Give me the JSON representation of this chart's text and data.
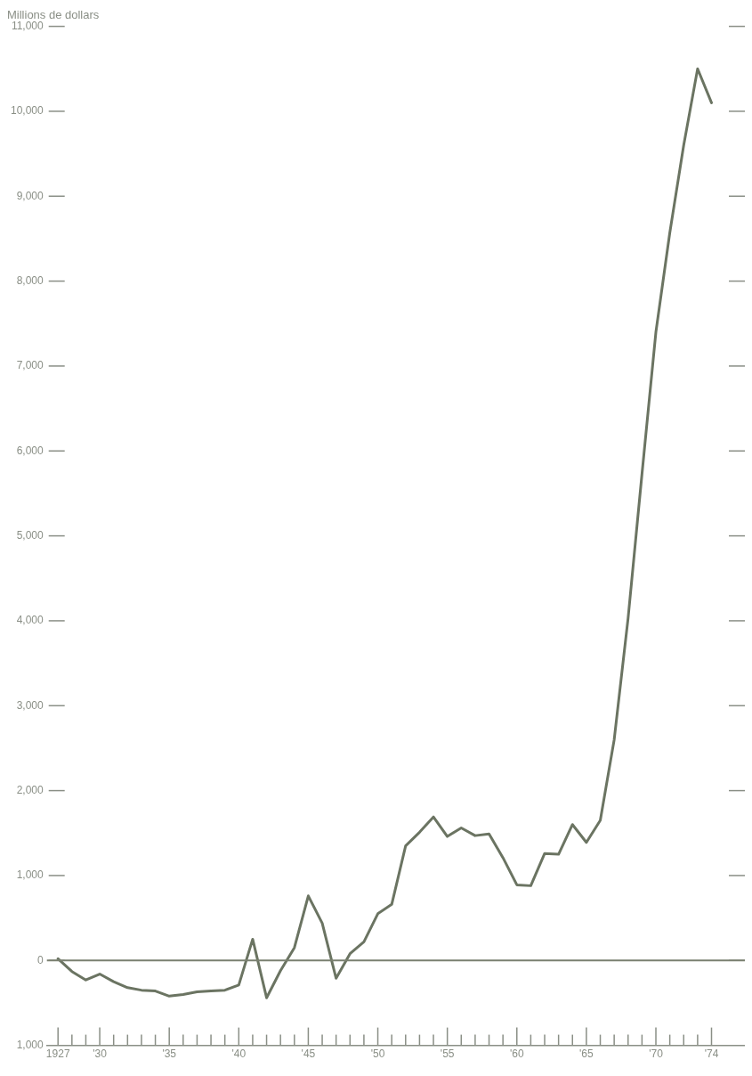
{
  "chart_data": {
    "type": "line",
    "title": "Millions de dollars",
    "x": [
      1927,
      1928,
      1929,
      1930,
      1931,
      1932,
      1933,
      1934,
      1935,
      1936,
      1937,
      1938,
      1939,
      1940,
      1941,
      1942,
      1943,
      1944,
      1945,
      1946,
      1947,
      1948,
      1949,
      1950,
      1951,
      1952,
      1953,
      1954,
      1955,
      1956,
      1957,
      1958,
      1959,
      1960,
      1961,
      1962,
      1963,
      1964,
      1965,
      1966,
      1967,
      1968,
      1969,
      1970,
      1971,
      1972,
      1973,
      1974
    ],
    "series": [
      {
        "color": "#6b7462",
        "values": [
          20,
          -130,
          -230,
          -160,
          -250,
          -320,
          -350,
          -360,
          -420,
          -400,
          -370,
          -360,
          -350,
          -290,
          250,
          -440,
          -120,
          150,
          760,
          440,
          -210,
          80,
          220,
          550,
          660,
          1350,
          1510,
          1690,
          1460,
          1560,
          1470,
          1490,
          1210,
          890,
          880,
          1260,
          1250,
          1600,
          1390,
          1650,
          2600,
          4030,
          5730,
          7400,
          8570,
          9600,
          10500,
          10100
        ]
      }
    ],
    "xlim": [
      1926.2,
      1976.4
    ],
    "ylim": [
      -1000,
      11000
    ],
    "xticks": [
      {
        "value": 1927,
        "label": "1927"
      },
      {
        "value": 1928,
        "label": null
      },
      {
        "value": 1929,
        "label": null
      },
      {
        "value": 1930,
        "label": "'30"
      },
      {
        "value": 1931,
        "label": null
      },
      {
        "value": 1932,
        "label": null
      },
      {
        "value": 1933,
        "label": null
      },
      {
        "value": 1934,
        "label": null
      },
      {
        "value": 1935,
        "label": "'35"
      },
      {
        "value": 1936,
        "label": null
      },
      {
        "value": 1937,
        "label": null
      },
      {
        "value": 1938,
        "label": null
      },
      {
        "value": 1939,
        "label": null
      },
      {
        "value": 1940,
        "label": "'40"
      },
      {
        "value": 1941,
        "label": null
      },
      {
        "value": 1942,
        "label": null
      },
      {
        "value": 1943,
        "label": null
      },
      {
        "value": 1944,
        "label": null
      },
      {
        "value": 1945,
        "label": "'45"
      },
      {
        "value": 1946,
        "label": null
      },
      {
        "value": 1947,
        "label": null
      },
      {
        "value": 1948,
        "label": null
      },
      {
        "value": 1949,
        "label": null
      },
      {
        "value": 1950,
        "label": "'50"
      },
      {
        "value": 1951,
        "label": null
      },
      {
        "value": 1952,
        "label": null
      },
      {
        "value": 1953,
        "label": null
      },
      {
        "value": 1954,
        "label": null
      },
      {
        "value": 1955,
        "label": "'55"
      },
      {
        "value": 1956,
        "label": null
      },
      {
        "value": 1957,
        "label": null
      },
      {
        "value": 1958,
        "label": null
      },
      {
        "value": 1959,
        "label": null
      },
      {
        "value": 1960,
        "label": "'60"
      },
      {
        "value": 1961,
        "label": null
      },
      {
        "value": 1962,
        "label": null
      },
      {
        "value": 1963,
        "label": null
      },
      {
        "value": 1964,
        "label": null
      },
      {
        "value": 1965,
        "label": "'65"
      },
      {
        "value": 1966,
        "label": null
      },
      {
        "value": 1967,
        "label": null
      },
      {
        "value": 1968,
        "label": null
      },
      {
        "value": 1969,
        "label": null
      },
      {
        "value": 1970,
        "label": "'70"
      },
      {
        "value": 1971,
        "label": null
      },
      {
        "value": 1972,
        "label": null
      },
      {
        "value": 1973,
        "label": null
      },
      {
        "value": 1974,
        "label": "'74"
      }
    ],
    "yticks": [
      {
        "value": -1000,
        "label": "1,000"
      },
      0,
      {
        "value": 1000,
        "label": "1,000"
      },
      {
        "value": 2000,
        "label": "2,000"
      },
      {
        "value": 3000,
        "label": "3,000"
      },
      {
        "value": 4000,
        "label": "4,000"
      },
      {
        "value": 5000,
        "label": "5,000"
      },
      {
        "value": 6000,
        "label": "6,000"
      },
      {
        "value": 7000,
        "label": "7,000"
      },
      {
        "value": 8000,
        "label": "8,000"
      },
      {
        "value": 9000,
        "label": "9,000"
      },
      {
        "value": 10000,
        "label": "10,000"
      },
      {
        "value": 11000,
        "label": "11,000"
      }
    ],
    "ref_lines": [
      {
        "axis": "y",
        "value": 0,
        "color": "#7a8070"
      }
    ],
    "grid": false,
    "legend": false,
    "marker": "none",
    "line_style": "solid"
  }
}
